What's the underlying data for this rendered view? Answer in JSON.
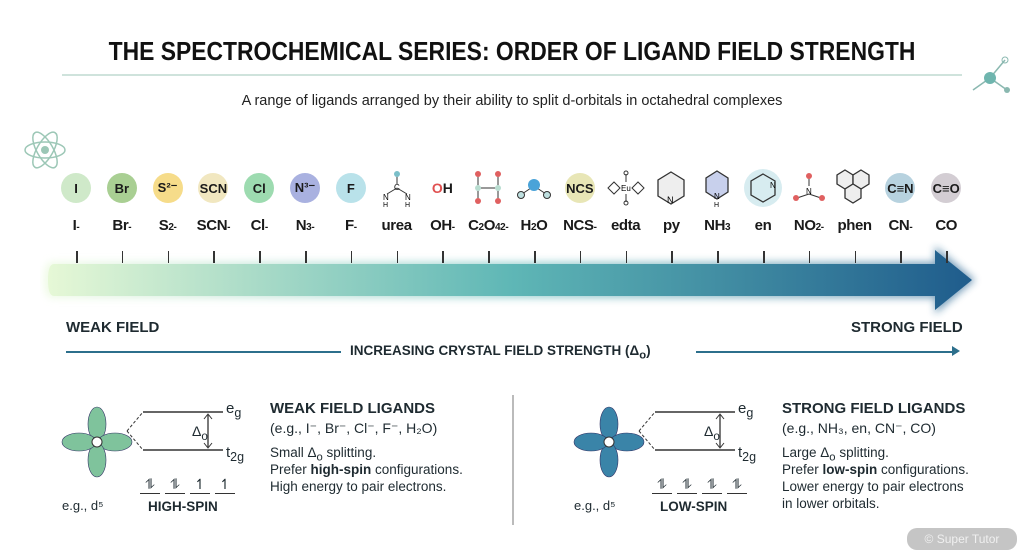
{
  "title": "THE SPECTROCHEMICAL SERIES: ORDER OF LIGAND FIELD STRENGTH",
  "subtitle": "A range of ligands arranged by their ability to split d-orbitals in octahedral complexes",
  "ligands": [
    {
      "icon": "circle",
      "icon_text": "I",
      "color": "#cfe9c9",
      "label": [
        [
          "I"
        ],
        [
          "-",
          "sup"
        ]
      ]
    },
    {
      "icon": "circle",
      "icon_text": "Br",
      "color": "#a9cf93",
      "label": [
        [
          "Br"
        ],
        [
          "-",
          "sup"
        ]
      ]
    },
    {
      "icon": "circle",
      "icon_text": "S²⁻",
      "color": "#f6dc8a",
      "label": [
        [
          "S"
        ],
        [
          "2-",
          "sup"
        ]
      ]
    },
    {
      "icon": "circle",
      "icon_text": "SCN",
      "color": "#f1e7c0",
      "label": [
        [
          "SCN"
        ],
        [
          "-",
          "sup"
        ]
      ]
    },
    {
      "icon": "circle",
      "icon_text": "Cl",
      "color": "#9ddbb0",
      "label": [
        [
          "Cl"
        ],
        [
          "-",
          "sup"
        ]
      ]
    },
    {
      "icon": "circle",
      "icon_text": "N³⁻",
      "color": "#a9b1e0",
      "label": [
        [
          "N"
        ],
        [
          "3-",
          "sup"
        ]
      ]
    },
    {
      "icon": "circle",
      "icon_text": "F",
      "color": "#b9e2ea",
      "label": [
        [
          "F"
        ],
        [
          "-",
          "sup"
        ]
      ]
    },
    {
      "icon": "urea-structure-icon",
      "label": [
        [
          "urea"
        ]
      ]
    },
    {
      "icon": "hydroxide-icon",
      "icon_text": "OH",
      "label": [
        [
          "OH"
        ],
        [
          "-",
          "sup"
        ]
      ]
    },
    {
      "icon": "oxalate-structure-icon",
      "label": [
        [
          "C"
        ],
        [
          "2",
          "sub"
        ],
        [
          "O"
        ],
        [
          "4",
          "sub"
        ],
        [
          "2-",
          "sup"
        ]
      ]
    },
    {
      "icon": "water-molecule-icon",
      "label": [
        [
          "H"
        ],
        [
          "2",
          "sub"
        ],
        [
          "O"
        ]
      ]
    },
    {
      "icon": "circle",
      "icon_text": "NCS",
      "color": "#e8e6b6",
      "label": [
        [
          "NCS"
        ],
        [
          "-",
          "sup"
        ]
      ]
    },
    {
      "icon": "edta-structure-icon",
      "label": [
        [
          "edta"
        ]
      ]
    },
    {
      "icon": "pyridine-ring-icon",
      "label": [
        [
          "py"
        ]
      ]
    },
    {
      "icon": "ammonia-ring-icon",
      "label": [
        [
          "NH"
        ],
        [
          "3",
          "sub"
        ]
      ]
    },
    {
      "icon": "en-ring-icon",
      "label": [
        [
          "en"
        ]
      ]
    },
    {
      "icon": "nitrite-structure-icon",
      "label": [
        [
          "NO"
        ],
        [
          "2",
          "sub"
        ],
        [
          "-",
          "sup"
        ]
      ]
    },
    {
      "icon": "phen-structure-icon",
      "label": [
        [
          "phen"
        ]
      ]
    },
    {
      "icon": "circle",
      "icon_text": "C≡N",
      "color": "#b7d2df",
      "label": [
        [
          "CN"
        ],
        [
          "-",
          "sup"
        ]
      ]
    },
    {
      "icon": "circle",
      "icon_text": "C≡O",
      "color": "#d3cdd3",
      "label": [
        [
          "CO"
        ]
      ]
    }
  ],
  "arrow": {
    "gradient_start": "#e6f8d6",
    "gradient_mid": "#5fb7b6",
    "gradient_end": "#1f5c8c"
  },
  "weak_field_label": "WEAK FIELD",
  "strong_field_label": "STRONG FIELD",
  "axis_label": "INCREASING CRYSTAL FIELD STRENGTH (Δo)",
  "weak": {
    "orbital_color": "#7fc39c",
    "example": "e.g., d⁵",
    "eg": "eg",
    "t2g": "t2g",
    "delta": "Δo",
    "electrons": [
      "⥮",
      "⥮",
      "↿",
      "↿"
    ],
    "spin_label": "HIGH-SPIN",
    "heading": "WEAK FIELD LIGANDS",
    "examples": "(e.g., I⁻, Br⁻, Cl⁻, F⁻, H₂O)",
    "lines": [
      "Small Δo splitting.",
      "Prefer high-spin configurations.",
      "High energy to pair electrons."
    ]
  },
  "strong": {
    "orbital_color": "#3a84a8",
    "example": "e.g., d⁵",
    "eg": "eg",
    "t2g": "t2g",
    "delta": "Δo",
    "electrons": [
      "⥮",
      "⥮",
      "⥮",
      "⥮"
    ],
    "spin_label": "LOW-SPIN",
    "heading": "STRONG FIELD LIGANDS",
    "examples": "(e.g., NH₃, en, CN⁻, CO)",
    "lines": [
      "Large Δo splitting.",
      "Prefer low-spin configurations.",
      "Lower energy to pair electrons",
      "in lower orbitals."
    ]
  },
  "watermark": "© Super Tutor"
}
